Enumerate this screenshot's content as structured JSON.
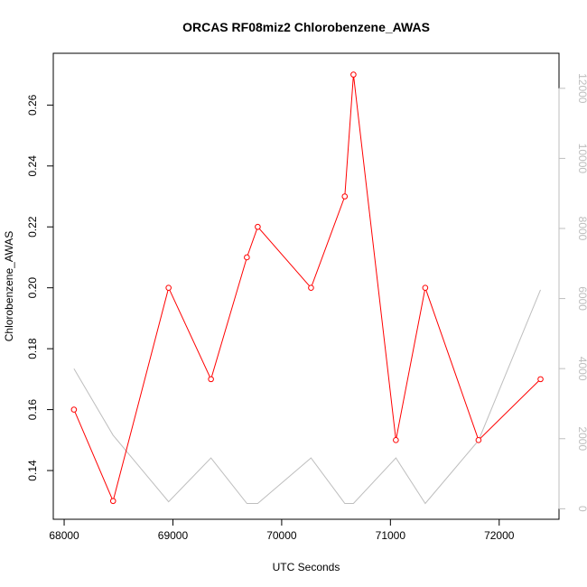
{
  "chart_data": {
    "type": "line",
    "title": "ORCAS RF08miz2 Chlorobenzene_AWAS",
    "xlabel": "UTC Seconds",
    "ylabel": "Chlorobenzene_AWAS",
    "xlim": [
      67900,
      72550
    ],
    "ylim": [
      0.124,
      0.277
    ],
    "y2lim": [
      -300,
      13000
    ],
    "x_ticks": [
      68000,
      69000,
      70000,
      71000,
      72000
    ],
    "y_ticks": [
      0.14,
      0.16,
      0.18,
      0.2,
      0.22,
      0.24,
      0.26
    ],
    "y_tick_labels": [
      "0.14",
      "0.16",
      "0.18",
      "0.20",
      "0.22",
      "0.24",
      "0.26"
    ],
    "y2_ticks": [
      0,
      2000,
      4000,
      6000,
      8000,
      10000,
      12000
    ],
    "grid": false,
    "series": [
      {
        "axis": "left",
        "color": "#ff0000",
        "marker": "open-circle",
        "x": [
          68090,
          68450,
          68960,
          69350,
          69680,
          69780,
          70270,
          70580,
          70660,
          71050,
          71320,
          71810,
          72380
        ],
        "y": [
          0.16,
          0.13,
          0.2,
          0.17,
          0.21,
          0.22,
          0.2,
          0.23,
          0.27,
          0.15,
          0.2,
          0.15,
          0.17
        ]
      },
      {
        "axis": "right",
        "color": "#bebebe",
        "marker": "none",
        "x": [
          68090,
          68450,
          68960,
          69350,
          69680,
          69780,
          70270,
          70580,
          70660,
          71050,
          71320,
          71810,
          72380
        ],
        "y": [
          4000,
          2100,
          200,
          1450,
          150,
          150,
          1450,
          150,
          150,
          1450,
          150,
          1950,
          6250
        ]
      }
    ]
  }
}
